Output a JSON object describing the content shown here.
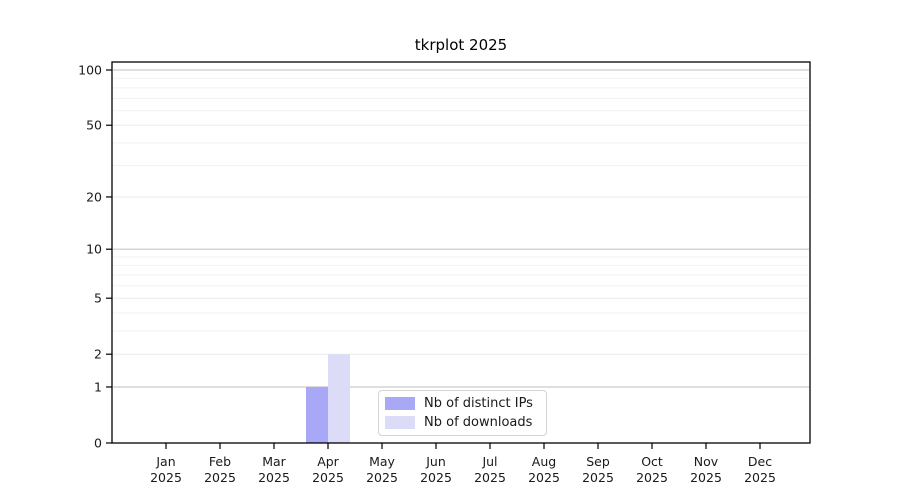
{
  "chart_data": {
    "type": "bar",
    "title": "tkrplot 2025",
    "xlabel": "",
    "ylabel": "",
    "categories": [
      "Jan",
      "Feb",
      "Mar",
      "Apr",
      "May",
      "Jun",
      "Jul",
      "Aug",
      "Sep",
      "Oct",
      "Nov",
      "Dec"
    ],
    "category_year": "2025",
    "series": [
      {
        "name": "Nb of distinct IPs",
        "color": "#a8a8f7",
        "values": [
          0,
          0,
          0,
          1,
          0,
          0,
          0,
          0,
          0,
          0,
          0,
          0
        ]
      },
      {
        "name": "Nb of downloads",
        "color": "#dcdcf8",
        "values": [
          0,
          0,
          0,
          2,
          0,
          0,
          0,
          0,
          0,
          0,
          0,
          0
        ]
      }
    ],
    "y_scale": "log10(1+x)",
    "y_ticks": [
      0,
      1,
      2,
      5,
      10,
      20,
      50,
      100
    ],
    "y_minor_gridlines": [
      3,
      4,
      6,
      7,
      8,
      9,
      30,
      40,
      60,
      70,
      80,
      90
    ],
    "ylim": [
      0,
      110
    ],
    "grid": "horizontal",
    "legend_position": "inside-bottom-center",
    "colors": {
      "axis": "#000000",
      "tick_label": "#1a1a1a",
      "grid_decade": "#c9c9c9",
      "grid_labeled": "#ebebeb",
      "grid_minor": "#f2f2f2",
      "plot_background": "#ffffff"
    }
  }
}
